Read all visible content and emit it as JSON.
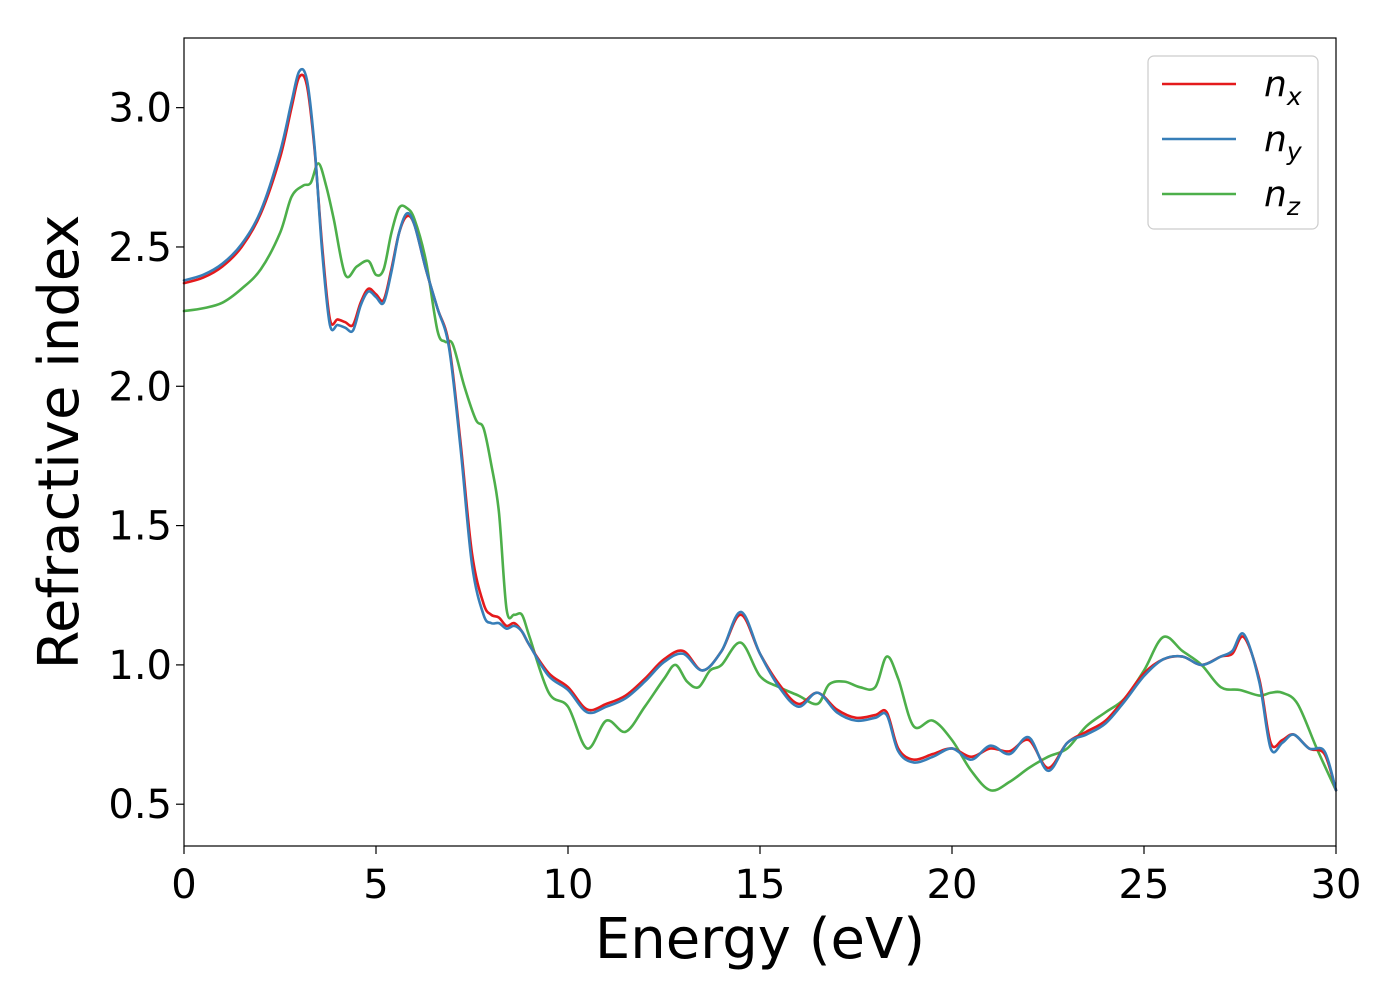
{
  "chart_data": {
    "type": "line",
    "xlabel": "Energy (eV)",
    "ylabel": "Refractive index",
    "xlim": [
      0,
      30
    ],
    "ylim": [
      0.35,
      3.25
    ],
    "xticks": [
      0,
      5,
      10,
      15,
      20,
      25,
      30
    ],
    "yticks": [
      0.5,
      1.0,
      1.5,
      2.0,
      2.5,
      3.0
    ],
    "xtick_labels": [
      "0",
      "5",
      "10",
      "15",
      "20",
      "25",
      "30"
    ],
    "ytick_labels": [
      "0.5",
      "1.0",
      "1.5",
      "2.0",
      "2.5",
      "3.0"
    ],
    "grid": false,
    "legend_position": "top-right",
    "series": [
      {
        "name": "n_x",
        "legend_base": "n",
        "legend_sub": "x",
        "color": "#e41a1c",
        "x": [
          0,
          0.5,
          1.0,
          1.5,
          2.0,
          2.5,
          2.8,
          3.0,
          3.2,
          3.4,
          3.6,
          3.8,
          4.0,
          4.2,
          4.4,
          4.6,
          4.8,
          5.0,
          5.2,
          5.4,
          5.6,
          5.8,
          6.0,
          6.3,
          6.6,
          6.9,
          7.2,
          7.5,
          7.8,
          8.0,
          8.2,
          8.4,
          8.6,
          8.8,
          9.0,
          9.5,
          10.0,
          10.5,
          11.0,
          11.5,
          12.0,
          12.5,
          13.0,
          13.5,
          14.0,
          14.5,
          15.0,
          15.5,
          16.0,
          16.5,
          17.0,
          17.5,
          18.0,
          18.3,
          18.6,
          19.0,
          19.5,
          20.0,
          20.5,
          21.0,
          21.5,
          22.0,
          22.5,
          23.0,
          23.5,
          24.0,
          24.5,
          25.0,
          25.5,
          26.0,
          26.5,
          27.0,
          27.3,
          27.6,
          28.0,
          28.3,
          28.6,
          28.9,
          29.3,
          29.7,
          30.0
        ],
        "y": [
          2.37,
          2.39,
          2.43,
          2.5,
          2.62,
          2.82,
          3.0,
          3.11,
          3.08,
          2.85,
          2.5,
          2.24,
          2.24,
          2.23,
          2.22,
          2.3,
          2.35,
          2.33,
          2.31,
          2.42,
          2.55,
          2.61,
          2.58,
          2.42,
          2.28,
          2.15,
          1.8,
          1.4,
          1.22,
          1.18,
          1.17,
          1.14,
          1.15,
          1.12,
          1.07,
          0.97,
          0.92,
          0.84,
          0.86,
          0.89,
          0.95,
          1.02,
          1.05,
          0.98,
          1.05,
          1.18,
          1.04,
          0.93,
          0.86,
          0.9,
          0.84,
          0.81,
          0.82,
          0.83,
          0.7,
          0.66,
          0.68,
          0.7,
          0.67,
          0.7,
          0.69,
          0.73,
          0.63,
          0.72,
          0.76,
          0.8,
          0.88,
          0.97,
          1.02,
          1.03,
          1.0,
          1.03,
          1.04,
          1.1,
          0.95,
          0.72,
          0.73,
          0.75,
          0.7,
          0.68,
          0.55
        ]
      },
      {
        "name": "n_y",
        "legend_base": "n",
        "legend_sub": "y",
        "color": "#377eb8",
        "x": [
          0,
          0.5,
          1.0,
          1.5,
          2.0,
          2.5,
          2.8,
          3.0,
          3.2,
          3.4,
          3.6,
          3.8,
          4.0,
          4.2,
          4.4,
          4.6,
          4.8,
          5.0,
          5.2,
          5.4,
          5.6,
          5.8,
          6.0,
          6.3,
          6.6,
          6.9,
          7.2,
          7.5,
          7.8,
          8.0,
          8.2,
          8.4,
          8.6,
          8.8,
          9.0,
          9.5,
          10.0,
          10.5,
          11.0,
          11.5,
          12.0,
          12.5,
          13.0,
          13.5,
          14.0,
          14.5,
          15.0,
          15.5,
          16.0,
          16.5,
          17.0,
          17.5,
          18.0,
          18.3,
          18.6,
          19.0,
          19.5,
          20.0,
          20.5,
          21.0,
          21.5,
          22.0,
          22.5,
          23.0,
          23.5,
          24.0,
          24.5,
          25.0,
          25.5,
          26.0,
          26.5,
          27.0,
          27.3,
          27.6,
          28.0,
          28.3,
          28.6,
          28.9,
          29.3,
          29.7,
          30.0
        ],
        "y": [
          2.38,
          2.4,
          2.44,
          2.51,
          2.63,
          2.84,
          3.02,
          3.13,
          3.1,
          2.86,
          2.48,
          2.22,
          2.22,
          2.21,
          2.2,
          2.29,
          2.34,
          2.32,
          2.3,
          2.41,
          2.55,
          2.62,
          2.58,
          2.42,
          2.28,
          2.14,
          1.78,
          1.36,
          1.18,
          1.15,
          1.15,
          1.13,
          1.14,
          1.12,
          1.07,
          0.96,
          0.91,
          0.83,
          0.85,
          0.88,
          0.94,
          1.01,
          1.04,
          0.98,
          1.05,
          1.19,
          1.04,
          0.92,
          0.85,
          0.9,
          0.83,
          0.8,
          0.81,
          0.82,
          0.69,
          0.65,
          0.67,
          0.7,
          0.66,
          0.71,
          0.68,
          0.74,
          0.62,
          0.72,
          0.75,
          0.79,
          0.87,
          0.96,
          1.02,
          1.03,
          1.0,
          1.03,
          1.05,
          1.11,
          0.94,
          0.7,
          0.72,
          0.75,
          0.7,
          0.69,
          0.55
        ]
      },
      {
        "name": "n_z",
        "legend_base": "n",
        "legend_sub": "z",
        "color": "#4daf4a",
        "x": [
          0,
          0.5,
          1.0,
          1.5,
          2.0,
          2.5,
          2.8,
          3.1,
          3.3,
          3.5,
          3.7,
          3.9,
          4.2,
          4.5,
          4.8,
          5.0,
          5.2,
          5.4,
          5.6,
          5.8,
          6.0,
          6.3,
          6.6,
          6.8,
          7.0,
          7.3,
          7.6,
          7.8,
          8.0,
          8.2,
          8.4,
          8.6,
          8.8,
          9.0,
          9.5,
          10.0,
          10.5,
          11.0,
          11.5,
          12.0,
          12.5,
          12.8,
          13.1,
          13.4,
          13.7,
          14.0,
          14.5,
          15.0,
          15.5,
          16.0,
          16.5,
          16.8,
          17.2,
          17.6,
          18.0,
          18.3,
          18.6,
          19.0,
          19.5,
          20.0,
          20.5,
          21.0,
          21.5,
          22.0,
          22.5,
          23.0,
          23.5,
          24.0,
          24.5,
          25.0,
          25.5,
          26.0,
          26.5,
          27.0,
          27.5,
          28.0,
          28.3,
          28.6,
          29.0,
          29.5,
          30.0
        ],
        "y": [
          2.27,
          2.28,
          2.3,
          2.35,
          2.42,
          2.55,
          2.68,
          2.72,
          2.73,
          2.8,
          2.72,
          2.6,
          2.4,
          2.43,
          2.45,
          2.4,
          2.42,
          2.55,
          2.64,
          2.64,
          2.6,
          2.45,
          2.2,
          2.16,
          2.15,
          2.0,
          1.88,
          1.85,
          1.72,
          1.55,
          1.2,
          1.18,
          1.18,
          1.1,
          0.9,
          0.85,
          0.7,
          0.8,
          0.76,
          0.85,
          0.95,
          1.0,
          0.94,
          0.92,
          0.98,
          1.0,
          1.08,
          0.96,
          0.92,
          0.89,
          0.86,
          0.93,
          0.94,
          0.92,
          0.92,
          1.03,
          0.95,
          0.78,
          0.8,
          0.73,
          0.62,
          0.55,
          0.58,
          0.63,
          0.67,
          0.7,
          0.78,
          0.83,
          0.88,
          0.98,
          1.1,
          1.05,
          1.0,
          0.92,
          0.91,
          0.89,
          0.9,
          0.9,
          0.86,
          0.7,
          0.55
        ]
      }
    ]
  }
}
